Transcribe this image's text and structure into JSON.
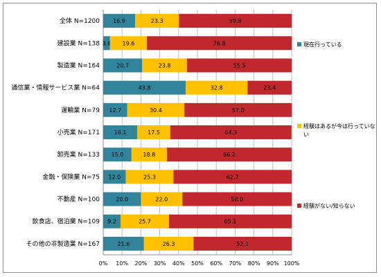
{
  "chart_data": {
    "type": "bar",
    "stacked": true,
    "orientation": "horizontal",
    "percent": true,
    "categories": [
      "全体 N=1200",
      "建設業 N=138",
      "製造業 N=164",
      "通信業・情報サービス業 N=64",
      "運輸業 N=79",
      "小売業 N=171",
      "卸売業 N=133",
      "金融・保険業 N=75",
      "不動産 N=100",
      "飲食店、宿泊業 N=109",
      "その他の非製造業 N=167"
    ],
    "series": [
      {
        "name": "現在行っている",
        "color": "#31849b",
        "values": [
          16.9,
          3.6,
          20.7,
          43.8,
          12.7,
          18.1,
          15.0,
          12.0,
          20.0,
          9.2,
          21.6
        ],
        "labels": [
          "16.9",
          "3.6",
          "20.7",
          "43.8",
          "12.7",
          "18.1",
          "15.0",
          "12.0",
          "20.0",
          "9.2",
          "21.6"
        ]
      },
      {
        "name": "経験はあるが今は行っていない",
        "color": "#ffc000",
        "values": [
          23.3,
          19.6,
          23.8,
          32.8,
          30.4,
          17.5,
          18.8,
          25.3,
          22.0,
          25.7,
          26.3
        ],
        "labels": [
          "23.3",
          "19.6",
          "23.8",
          "32.8",
          "30.4",
          "17.5",
          "18.8",
          "25.3",
          "22.0",
          "25.7",
          "26.3"
        ]
      },
      {
        "name": "経験がない/知らない",
        "color": "#c0282d",
        "values": [
          59.8,
          76.8,
          55.5,
          23.4,
          57.0,
          64.3,
          66.2,
          62.7,
          58.0,
          65.1,
          52.1
        ],
        "labels": [
          "59.8",
          "76.8",
          "55.5",
          "23.4",
          "57.0",
          "64.3",
          "66.2",
          "62.7",
          "58.0",
          "65.1",
          "52.1"
        ]
      }
    ],
    "xlim": [
      0,
      100
    ],
    "xticks": [
      "0%",
      "10%",
      "20%",
      "30%",
      "40%",
      "50%",
      "60%",
      "70%",
      "80%",
      "90%",
      "100%"
    ],
    "grid": true,
    "legend": "right"
  }
}
